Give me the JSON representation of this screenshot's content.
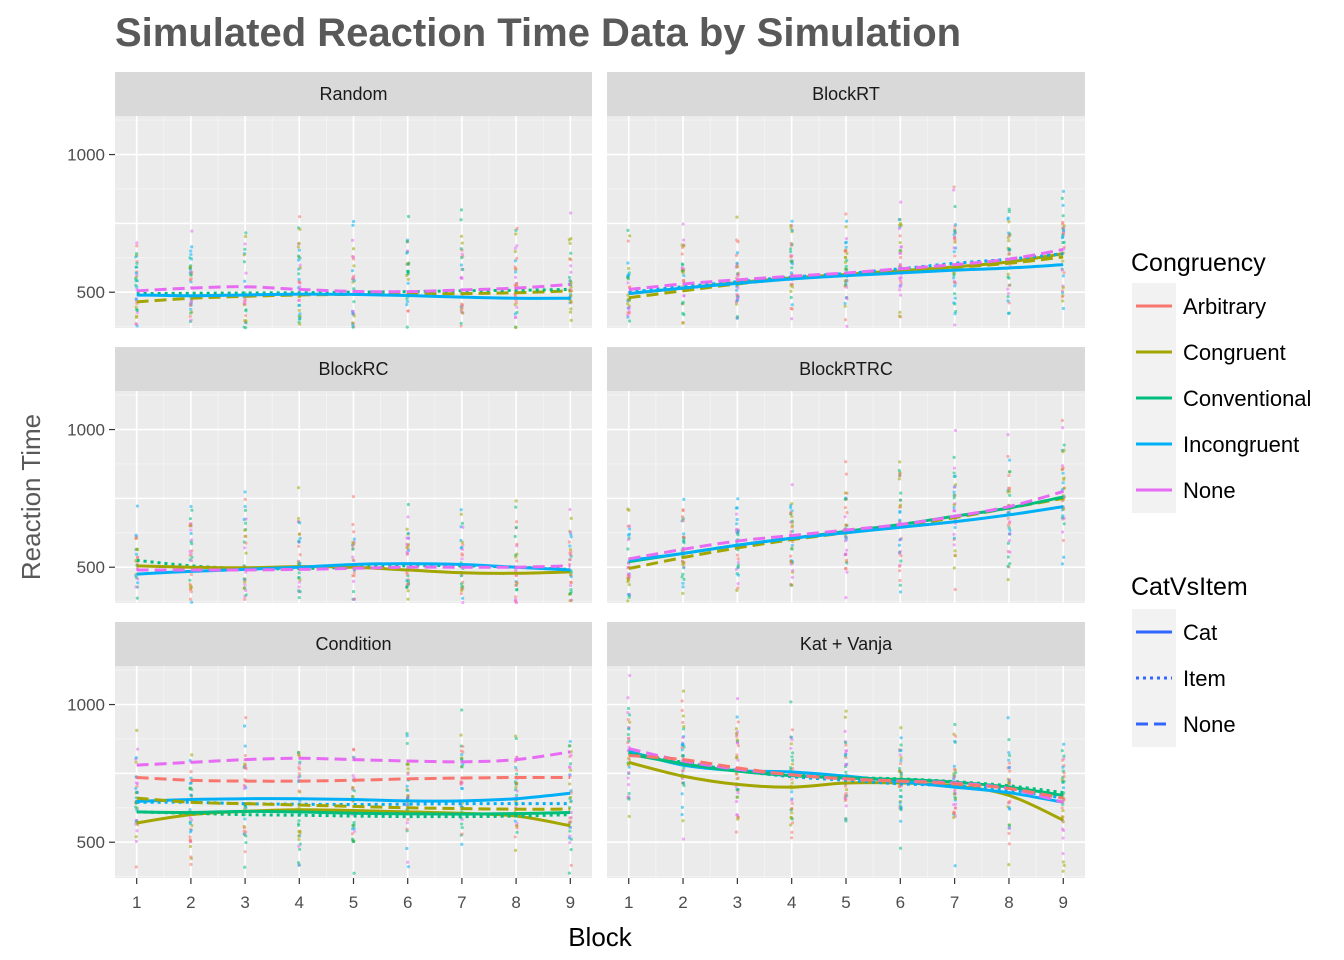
{
  "chart_data": {
    "type": "line",
    "title": "Simulated Reaction Time Data by Simulation",
    "xlabel": "Block",
    "ylabel": "Reaction Time",
    "x": [
      1,
      2,
      3,
      4,
      5,
      6,
      7,
      8,
      9
    ],
    "ylim": [
      370,
      1140
    ],
    "yticks": [
      500,
      1000
    ],
    "grid": true,
    "legend_position": "right",
    "legends": [
      {
        "title": "Congruency",
        "items": [
          {
            "name": "Arbitrary",
            "color": "#F8766D"
          },
          {
            "name": "Congruent",
            "color": "#A3A500"
          },
          {
            "name": "Conventional",
            "color": "#00BF7D"
          },
          {
            "name": "Incongruent",
            "color": "#00B0F6"
          },
          {
            "name": "None",
            "color": "#E76BF3"
          }
        ]
      },
      {
        "title": "CatVsItem",
        "items": [
          {
            "name": "Cat",
            "linetype": "solid"
          },
          {
            "name": "Item",
            "linetype": "dotted"
          },
          {
            "name": "None",
            "linetype": "dashed"
          }
        ]
      }
    ],
    "panels": [
      {
        "name": "Random",
        "series": [
          {
            "congruency": "Congruent",
            "linetype": "dashed",
            "values": [
              465,
              478,
              485,
              490,
              492,
              493,
              495,
              498,
              505
            ]
          },
          {
            "congruency": "Conventional",
            "linetype": "dotted",
            "values": [
              495,
              496,
              497,
              498,
              500,
              502,
              505,
              507,
              510
            ]
          },
          {
            "congruency": "Incongruent",
            "linetype": "solid",
            "values": [
              490,
              487,
              490,
              493,
              492,
              488,
              482,
              478,
              478
            ]
          },
          {
            "congruency": "None",
            "linetype": "dashed",
            "values": [
              505,
              515,
              520,
              510,
              503,
              502,
              508,
              515,
              528
            ]
          }
        ]
      },
      {
        "name": "BlockRT",
        "series": [
          {
            "congruency": "Congruent",
            "linetype": "dashed",
            "values": [
              480,
              505,
              530,
              550,
              562,
              575,
              590,
              605,
              628
            ]
          },
          {
            "congruency": "Congruent",
            "linetype": "solid",
            "values": [
              495,
              515,
              535,
              552,
              565,
              578,
              592,
              610,
              640
            ]
          },
          {
            "congruency": "Incongruent",
            "linetype": "solid",
            "values": [
              495,
              515,
              532,
              548,
              560,
              570,
              580,
              588,
              600
            ]
          },
          {
            "congruency": "Incongruent",
            "linetype": "dotted",
            "values": [
              500,
              520,
              538,
              555,
              568,
              585,
              605,
              620,
              640
            ]
          },
          {
            "congruency": "None",
            "linetype": "dashed",
            "values": [
              510,
              530,
              545,
              558,
              570,
              585,
              600,
              620,
              655
            ]
          }
        ]
      },
      {
        "name": "BlockRC",
        "series": [
          {
            "congruency": "Conventional",
            "linetype": "dotted",
            "values": [
              525,
              505,
              495,
              495,
              500,
              505,
              505,
              500,
              492
            ]
          },
          {
            "congruency": "Congruent",
            "linetype": "solid",
            "values": [
              505,
              500,
              498,
              502,
              500,
              490,
              480,
              478,
              483
            ]
          },
          {
            "congruency": "Incongruent",
            "linetype": "solid",
            "values": [
              475,
              485,
              492,
              500,
              510,
              513,
              510,
              500,
              490
            ]
          },
          {
            "congruency": "None",
            "linetype": "dashed",
            "values": [
              490,
              490,
              490,
              492,
              496,
              500,
              500,
              500,
              505
            ]
          }
        ]
      },
      {
        "name": "BlockRTRC",
        "series": [
          {
            "congruency": "Congruent",
            "linetype": "dashed",
            "values": [
              495,
              535,
              570,
              600,
              625,
              650,
              680,
              715,
              750
            ]
          },
          {
            "congruency": "Conventional",
            "linetype": "solid",
            "values": [
              520,
              550,
              580,
              605,
              630,
              655,
              685,
              715,
              755
            ]
          },
          {
            "congruency": "Incongruent",
            "linetype": "solid",
            "values": [
              525,
              550,
              580,
              605,
              625,
              645,
              665,
              690,
              720
            ]
          },
          {
            "congruency": "None",
            "linetype": "dashed",
            "values": [
              530,
              565,
              595,
              615,
              635,
              655,
              685,
              720,
              775
            ]
          }
        ]
      },
      {
        "name": "Condition",
        "series": [
          {
            "congruency": "Arbitrary",
            "linetype": "dashed",
            "values": [
              735,
              725,
              722,
              722,
              725,
              730,
              733,
              735,
              735
            ]
          },
          {
            "congruency": "None",
            "linetype": "dashed",
            "values": [
              780,
              790,
              800,
              805,
              800,
              795,
              792,
              800,
              828
            ]
          },
          {
            "congruency": "Incongruent",
            "linetype": "solid",
            "values": [
              648,
              655,
              658,
              658,
              655,
              650,
              650,
              658,
              678
            ]
          },
          {
            "congruency": "Incongruent",
            "linetype": "dotted",
            "values": [
              645,
              645,
              640,
              638,
              637,
              638,
              640,
              640,
              640
            ]
          },
          {
            "congruency": "Congruent",
            "linetype": "dashed",
            "values": [
              660,
              645,
              640,
              635,
              630,
              625,
              622,
              620,
              620
            ]
          },
          {
            "congruency": "Congruent",
            "linetype": "solid",
            "values": [
              570,
              600,
              612,
              618,
              615,
              610,
              605,
              595,
              560
            ]
          },
          {
            "congruency": "Conventional",
            "linetype": "solid",
            "values": [
              610,
              608,
              612,
              610,
              605,
              603,
              602,
              604,
              608
            ]
          },
          {
            "congruency": "Conventional",
            "linetype": "dotted",
            "values": [
              610,
              605,
              600,
              598,
              595,
              593,
              593,
              595,
              600
            ]
          }
        ]
      },
      {
        "name": "Kat + Vanja",
        "series": [
          {
            "congruency": "Congruent",
            "linetype": "solid",
            "values": [
              790,
              740,
              710,
              700,
              715,
              715,
              705,
              670,
              580
            ]
          },
          {
            "congruency": "Incongruent",
            "linetype": "solid",
            "values": [
              830,
              780,
              760,
              755,
              740,
              720,
              700,
              680,
              645
            ]
          },
          {
            "congruency": "Incongruent",
            "linetype": "dotted",
            "values": [
              820,
              790,
              760,
              738,
              725,
              712,
              705,
              690,
              660
            ]
          },
          {
            "congruency": "Conventional",
            "linetype": "dotted",
            "values": [
              825,
              790,
              760,
              745,
              735,
              730,
              720,
              705,
              680
            ]
          },
          {
            "congruency": "Conventional",
            "linetype": "solid",
            "values": [
              820,
              785,
              758,
              742,
              733,
              728,
              718,
              700,
              670
            ]
          },
          {
            "congruency": "None",
            "linetype": "dashed",
            "values": [
              840,
              795,
              765,
              745,
              730,
              722,
              715,
              695,
              645
            ]
          },
          {
            "congruency": "Arbitrary",
            "linetype": "dashed",
            "values": [
              815,
              800,
              770,
              745,
              730,
              722,
              712,
              695,
              660
            ]
          }
        ]
      }
    ]
  }
}
